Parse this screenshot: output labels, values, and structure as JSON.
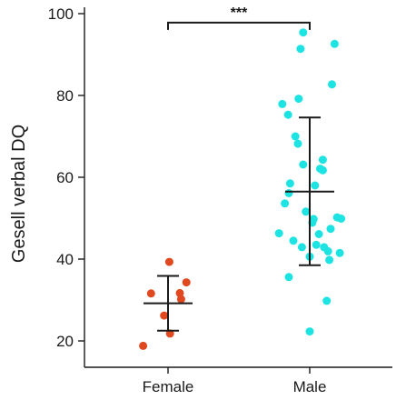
{
  "chart_data": {
    "type": "scatter",
    "title": "",
    "xlabel": "",
    "ylabel": "Gesell verbal DQ",
    "ylim": [
      20,
      100
    ],
    "yticks": [
      20,
      40,
      60,
      80,
      100
    ],
    "grid": false,
    "categories": [
      "Female",
      "Male"
    ],
    "groups": [
      {
        "category": "Female",
        "color": "#e0481f",
        "mean": 29.2,
        "sd_low": 22.5,
        "sd_high": 35.9,
        "points": [
          {
            "x": -0.38,
            "y": 18.8
          },
          {
            "x": -0.26,
            "y": 31.6
          },
          {
            "x": -0.06,
            "y": 26.2
          },
          {
            "x": 0.02,
            "y": 39.3
          },
          {
            "x": 0.03,
            "y": 21.8
          },
          {
            "x": 0.18,
            "y": 31.7
          },
          {
            "x": 0.2,
            "y": 30.2
          },
          {
            "x": 0.28,
            "y": 34.3
          }
        ]
      },
      {
        "category": "Male",
        "color": "#1ee3e3",
        "mean": 56.5,
        "sd_low": 38.5,
        "sd_high": 74.6,
        "points": [
          {
            "x": -0.47,
            "y": 46.3
          },
          {
            "x": -0.42,
            "y": 77.9
          },
          {
            "x": -0.38,
            "y": 53.6
          },
          {
            "x": -0.32,
            "y": 35.6
          },
          {
            "x": -0.32,
            "y": 56.1
          },
          {
            "x": -0.33,
            "y": 75.3
          },
          {
            "x": -0.3,
            "y": 58.5
          },
          {
            "x": -0.25,
            "y": 44.5
          },
          {
            "x": -0.22,
            "y": 70.0
          },
          {
            "x": -0.18,
            "y": 68.2
          },
          {
            "x": -0.17,
            "y": 79.2
          },
          {
            "x": -0.14,
            "y": 91.4
          },
          {
            "x": -0.12,
            "y": 42.9
          },
          {
            "x": -0.1,
            "y": 95.4
          },
          {
            "x": -0.1,
            "y": 63.1
          },
          {
            "x": -0.06,
            "y": 51.6
          },
          {
            "x": 0.0,
            "y": 40.6
          },
          {
            "x": 0.0,
            "y": 22.3
          },
          {
            "x": 0.04,
            "y": 48.9
          },
          {
            "x": 0.06,
            "y": 49.8
          },
          {
            "x": 0.08,
            "y": 58.0
          },
          {
            "x": 0.1,
            "y": 43.5
          },
          {
            "x": 0.14,
            "y": 46.1
          },
          {
            "x": 0.16,
            "y": 62.1
          },
          {
            "x": 0.2,
            "y": 64.3
          },
          {
            "x": 0.22,
            "y": 42.9
          },
          {
            "x": 0.2,
            "y": 61.7
          },
          {
            "x": 0.26,
            "y": 29.8
          },
          {
            "x": 0.28,
            "y": 41.9
          },
          {
            "x": 0.3,
            "y": 39.8
          },
          {
            "x": 0.32,
            "y": 47.4
          },
          {
            "x": 0.34,
            "y": 82.7
          },
          {
            "x": 0.38,
            "y": 92.6
          },
          {
            "x": 0.42,
            "y": 50.2
          },
          {
            "x": 0.46,
            "y": 41.5
          },
          {
            "x": 0.48,
            "y": 49.9
          }
        ]
      }
    ],
    "significance": {
      "label": "***",
      "from": "Female",
      "to": "Male",
      "y": 97.8
    }
  }
}
